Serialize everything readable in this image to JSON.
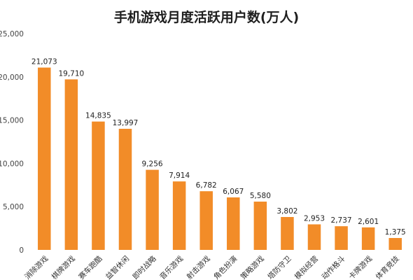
{
  "chart_data": {
    "type": "bar",
    "title": "手机游戏月度活跃用户数(万人)",
    "categories": [
      "消除游戏",
      "棋牌游戏",
      "赛车跑酷",
      "益智休闲",
      "即时战略",
      "音乐游戏",
      "射击游戏",
      "角色扮演",
      "策略游戏",
      "塔防守卫",
      "模拟经营",
      "动作格斗",
      "卡牌游戏",
      "体育竞技"
    ],
    "values": [
      21073,
      19710,
      14835,
      13997,
      9256,
      7914,
      6782,
      6067,
      5580,
      3802,
      2953,
      2737,
      2601,
      1375
    ],
    "value_labels": [
      "21,073",
      "19,710",
      "14,835",
      "13,997",
      "9,256",
      "7,914",
      "6,782",
      "6,067",
      "5,580",
      "3,802",
      "2,953",
      "2,737",
      "2,601",
      "1,375"
    ],
    "yticks": [
      "0",
      "5,000",
      "10,000",
      "15,000",
      "20,000",
      "25,000"
    ],
    "ylim": [
      0,
      25000
    ],
    "xlabel": "",
    "ylabel": "",
    "grid": false,
    "legend": "none",
    "bar_color": "#F28C28"
  }
}
